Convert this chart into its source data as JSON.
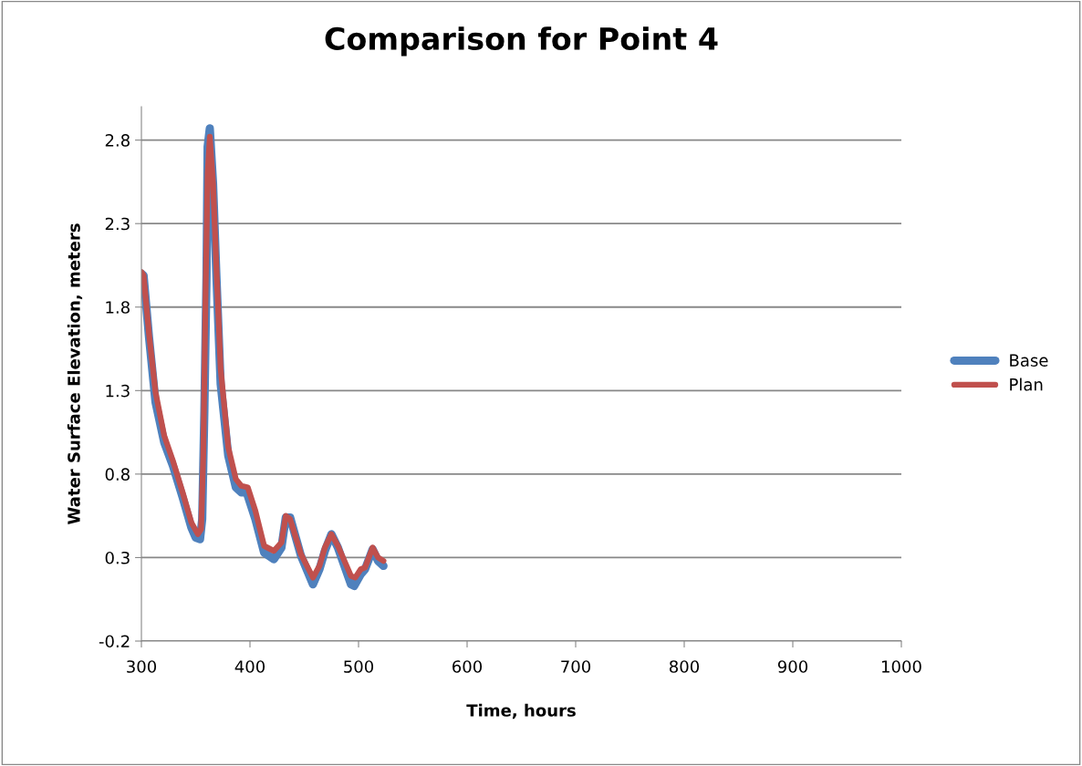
{
  "chart_data": {
    "type": "line",
    "title": "Comparison for Point 4",
    "xlabel": "Time, hours",
    "ylabel": "Water Surface Elevation, meters",
    "xlim": [
      300,
      1000
    ],
    "xticks": [
      300,
      400,
      500,
      600,
      700,
      800,
      900,
      1000
    ],
    "ylim": [
      -0.2,
      3.0
    ],
    "yticks": [
      {
        "value": -0.2,
        "label": "-0.2"
      },
      0.3,
      0.8,
      1.3,
      1.8,
      2.3,
      2.8
    ],
    "grid": "y",
    "legend": "right",
    "marker": "none",
    "line_style": "solid",
    "series": [
      {
        "name": "Base",
        "color": "#4f81bd",
        "x": [
          300,
          302,
          307,
          313,
          321,
          329,
          338,
          346,
          350,
          354,
          356,
          358,
          360,
          361,
          363,
          366,
          369,
          373,
          380,
          387,
          392,
          397,
          405,
          413,
          422,
          429,
          433,
          437,
          447,
          458,
          464,
          469,
          475,
          481,
          493,
          496,
          502,
          506,
          513,
          518,
          523
        ],
        "values": [
          2.0,
          1.99,
          1.62,
          1.23,
          0.99,
          0.85,
          0.66,
          0.48,
          0.42,
          0.41,
          0.53,
          1.18,
          2.0,
          2.76,
          2.87,
          2.54,
          2.0,
          1.34,
          0.91,
          0.72,
          0.69,
          0.69,
          0.53,
          0.33,
          0.29,
          0.36,
          0.54,
          0.54,
          0.31,
          0.14,
          0.23,
          0.34,
          0.44,
          0.36,
          0.14,
          0.13,
          0.2,
          0.23,
          0.35,
          0.28,
          0.25
        ]
      },
      {
        "name": "Plan",
        "color": "#c0504d",
        "x": [
          300,
          302,
          307,
          313,
          321,
          329,
          338,
          346,
          352,
          355,
          357,
          359,
          361,
          363,
          366,
          369,
          373,
          380,
          387,
          392,
          398,
          405,
          413,
          422,
          429,
          433,
          437,
          447,
          458,
          464,
          469,
          475,
          481,
          493,
          497,
          502,
          506,
          513,
          518,
          523
        ],
        "values": [
          2.01,
          1.99,
          1.64,
          1.29,
          1.03,
          0.88,
          0.69,
          0.51,
          0.44,
          0.47,
          0.91,
          1.83,
          2.6,
          2.82,
          2.54,
          2.05,
          1.43,
          0.96,
          0.77,
          0.73,
          0.72,
          0.58,
          0.37,
          0.34,
          0.39,
          0.55,
          0.53,
          0.32,
          0.18,
          0.25,
          0.36,
          0.44,
          0.37,
          0.19,
          0.18,
          0.23,
          0.24,
          0.36,
          0.3,
          0.28
        ]
      }
    ]
  }
}
